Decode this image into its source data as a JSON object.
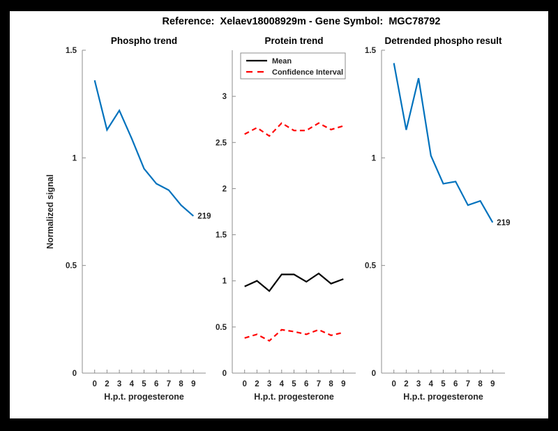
{
  "figure": {
    "title": "Reference:  Xelaev18008929m - Gene Symbol:  MGC78792",
    "frame_color": "#000000",
    "canvas_color": "#ffffff"
  },
  "colors": {
    "axis": "#8c8c8c",
    "tick_text": "#262626",
    "title_text": "#000000",
    "blue": "#0072BD",
    "red": "#FF0000",
    "black": "#000000"
  },
  "chart_data": [
    {
      "type": "line",
      "title": "Phospho trend",
      "xlabel": "H.p.t. progesterone",
      "ylabel": "Normalized signal",
      "x_tick_labels": [
        "0",
        "2",
        "3",
        "4",
        "5",
        "6",
        "7",
        "8",
        "9"
      ],
      "ylim": [
        0,
        1.5
      ],
      "yticks": [
        0,
        0.5,
        1,
        1.5
      ],
      "ytick_labels": [
        "0",
        "0.5",
        "1",
        "1.5"
      ],
      "grid": false,
      "legend": null,
      "end_label": "219",
      "series": [
        {
          "name": "phospho-signal",
          "color": "#0072BD",
          "style": "solid",
          "values": [
            1.36,
            1.13,
            1.22,
            1.09,
            0.95,
            0.88,
            0.85,
            0.78,
            0.73
          ]
        }
      ]
    },
    {
      "type": "line",
      "title": "Protein trend",
      "xlabel": "H.p.t. progesterone",
      "ylabel": null,
      "x_tick_labels": [
        "0",
        "2",
        "3",
        "4",
        "5",
        "6",
        "7",
        "8",
        "9"
      ],
      "ylim": [
        0,
        3.5
      ],
      "yticks": [
        0,
        0.5,
        1,
        1.5,
        2,
        2.5,
        3
      ],
      "ytick_labels": [
        "0",
        "0.5",
        "1",
        "1.5",
        "2",
        "2.5",
        "3"
      ],
      "grid": false,
      "legend": {
        "position": "top-left",
        "entries": [
          {
            "label": "Mean",
            "color": "#000000",
            "style": "solid"
          },
          {
            "label": "Confidence Interval",
            "color": "#FF0000",
            "style": "dashed"
          }
        ]
      },
      "end_label": null,
      "series": [
        {
          "name": "mean",
          "color": "#000000",
          "style": "solid",
          "values": [
            0.94,
            1.0,
            0.89,
            1.07,
            1.07,
            0.99,
            1.08,
            0.97,
            1.02
          ]
        },
        {
          "name": "confidence-interval-upper",
          "color": "#FF0000",
          "style": "dashed",
          "values": [
            2.59,
            2.66,
            2.57,
            2.71,
            2.63,
            2.63,
            2.71,
            2.64,
            2.68
          ]
        },
        {
          "name": "confidence-interval-lower",
          "color": "#FF0000",
          "style": "dashed",
          "values": [
            0.38,
            0.42,
            0.35,
            0.47,
            0.45,
            0.42,
            0.47,
            0.41,
            0.44
          ]
        }
      ]
    },
    {
      "type": "line",
      "title": "Detrended phospho result",
      "xlabel": "H.p.t. progesterone",
      "ylabel": null,
      "x_tick_labels": [
        "0",
        "2",
        "3",
        "4",
        "5",
        "6",
        "7",
        "8",
        "9"
      ],
      "ylim": [
        0,
        1.5
      ],
      "yticks": [
        0,
        0.5,
        1,
        1.5
      ],
      "ytick_labels": [
        "0",
        "0.5",
        "1",
        "1.5"
      ],
      "grid": false,
      "legend": null,
      "end_label": "219",
      "series": [
        {
          "name": "detrended-phospho-signal",
          "color": "#0072BD",
          "style": "solid",
          "values": [
            1.44,
            1.13,
            1.37,
            1.01,
            0.88,
            0.89,
            0.78,
            0.8,
            0.7
          ]
        }
      ]
    }
  ]
}
